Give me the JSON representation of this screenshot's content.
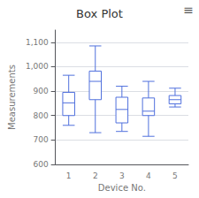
{
  "chart_data": {
    "type": "boxplot",
    "title": "Box Plot",
    "xlabel": "Device No.",
    "ylabel": "Measurements",
    "categories": [
      "1",
      "2",
      "3",
      "4",
      "5"
    ],
    "values": [
      [
        760,
        800,
        852,
        895,
        965
      ],
      [
        730,
        865,
        940,
        982,
        1085
      ],
      [
        735,
        770,
        825,
        875,
        920
      ],
      [
        715,
        800,
        818,
        872,
        940
      ],
      [
        835,
        848,
        865,
        882,
        912
      ]
    ],
    "ylim": [
      600,
      1150
    ],
    "yticks": [
      600,
      700,
      800,
      900,
      1000,
      1100
    ],
    "grid": true,
    "annotations": [
      "≡"
    ]
  }
}
